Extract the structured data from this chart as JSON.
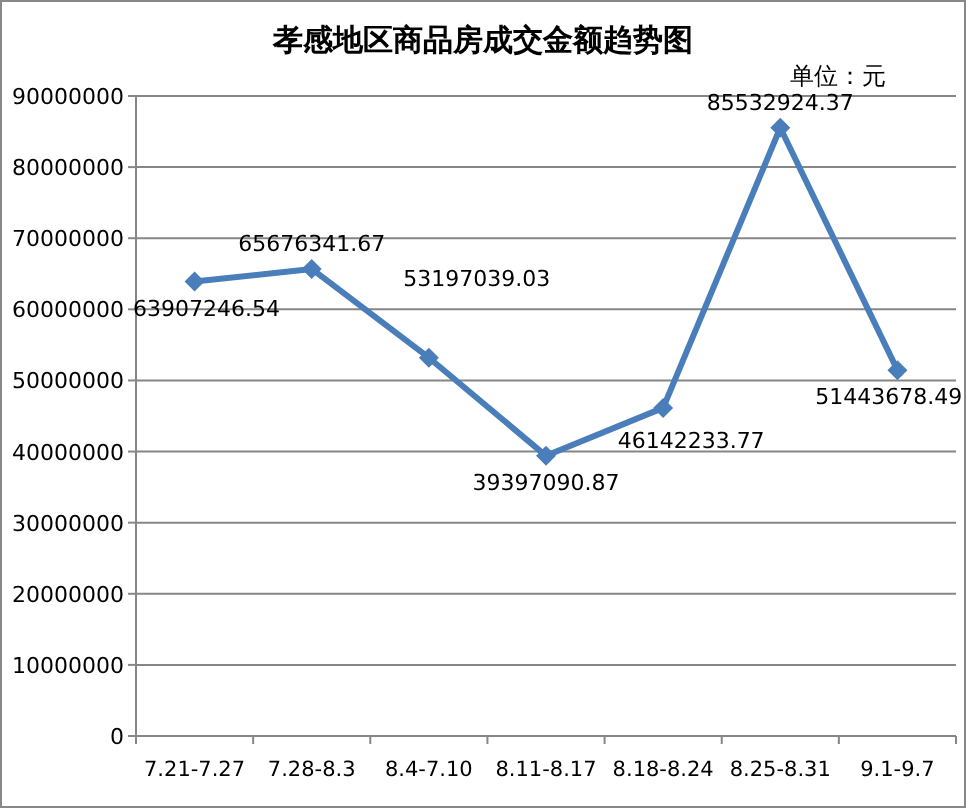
{
  "chart_data": {
    "type": "line",
    "title": "孝感地区商品房成交金额趋势图",
    "annotations": [
      "单位：元"
    ],
    "categories": [
      "7.21-7.27",
      "7.28-8.3",
      "8.4-7.10",
      "8.11-8.17",
      "8.18-8.24",
      "8.25-8.31",
      "9.1-9.7"
    ],
    "series": [
      {
        "color": "#4a7ebb",
        "values": [
          63907246.54,
          65676341.67,
          53197039.03,
          39397090.87,
          46142233.77,
          85532924.37,
          51443678.49
        ]
      }
    ],
    "ylim": [
      0,
      90000000
    ],
    "yticks": [
      0,
      10000000,
      20000000,
      30000000,
      40000000,
      50000000,
      60000000,
      70000000,
      80000000,
      90000000
    ],
    "grid": "y",
    "marker": "diamond",
    "data_labels": true
  }
}
